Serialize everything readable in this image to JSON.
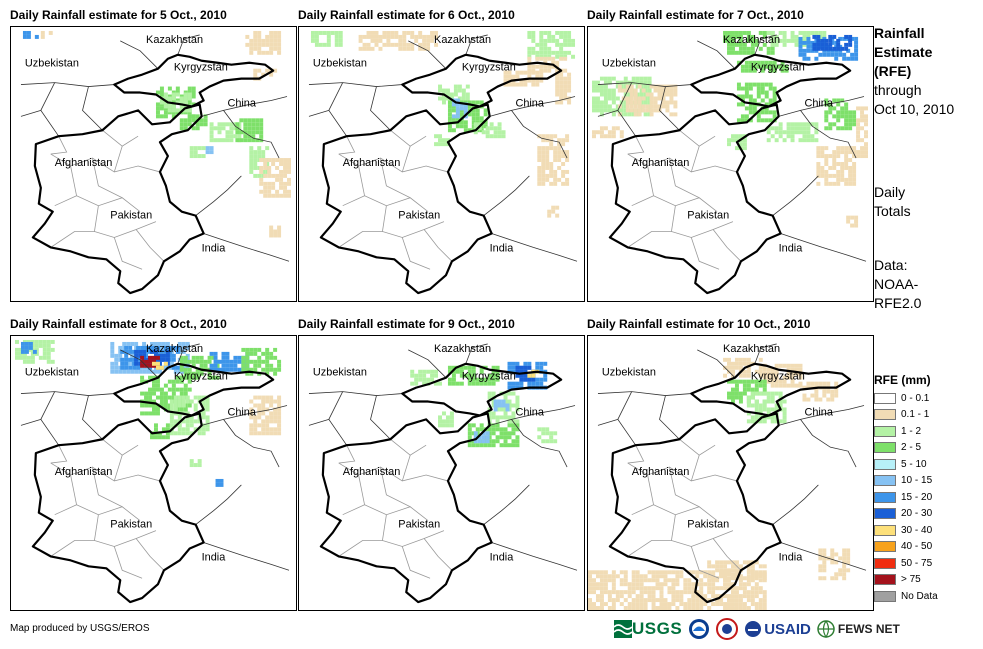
{
  "panels": [
    {
      "title": "Daily Rainfall estimate for 5 Oct., 2010"
    },
    {
      "title": "Daily Rainfall estimate for 6 Oct., 2010"
    },
    {
      "title": "Daily Rainfall estimate for 7 Oct., 2010"
    },
    {
      "title": "Daily Rainfall estimate for 8 Oct., 2010"
    },
    {
      "title": "Daily Rainfall estimate for 9 Oct., 2010"
    },
    {
      "title": "Daily Rainfall estimate for 10 Oct., 2010"
    }
  ],
  "map_labels": {
    "kazakhstan": "Kazakhstan",
    "uzbekistan": "Uzbekistan",
    "kyrgyzstan": "Kyrgyzstan",
    "china": "China",
    "afghanistan": "Afghanistan",
    "pakistan": "Pakistan",
    "india": "India"
  },
  "sidebar": {
    "title_line1": "Rainfall",
    "title_line2": "Estimate",
    "title_line3": "(RFE)",
    "through_line1": "through",
    "through_line2": "Oct 10, 2010",
    "totals_line1": "Daily",
    "totals_line2": "Totals",
    "data_line1": "Data:",
    "data_line2": "NOAA-",
    "data_line3": "RFE2.0"
  },
  "legend": {
    "title": "RFE (mm)",
    "items": [
      {
        "label": "0 - 0.1",
        "color": "#ffffff"
      },
      {
        "label": "0.1 - 1",
        "color": "#f1dcb5"
      },
      {
        "label": "1 - 2",
        "color": "#b4f2a5"
      },
      {
        "label": "2 - 5",
        "color": "#7ee06a"
      },
      {
        "label": "5 - 10",
        "color": "#b7f0f8"
      },
      {
        "label": "10 - 15",
        "color": "#86c2f3"
      },
      {
        "label": "15 - 20",
        "color": "#3d95ea"
      },
      {
        "label": "20 - 30",
        "color": "#1a5fd6"
      },
      {
        "label": "30 - 40",
        "color": "#fde07a"
      },
      {
        "label": "40 - 50",
        "color": "#f7a21c"
      },
      {
        "label": "50 - 75",
        "color": "#f02d10"
      },
      {
        "label": "> 75",
        "color": "#a4121c"
      },
      {
        "label": "No Data",
        "color": "#a0a0a0"
      }
    ]
  },
  "footer": {
    "credit": "Map produced by USGS/EROS"
  },
  "logos": {
    "usgs": "USGS",
    "usaid": "USAID",
    "fewsnet": "FEWS NET"
  }
}
